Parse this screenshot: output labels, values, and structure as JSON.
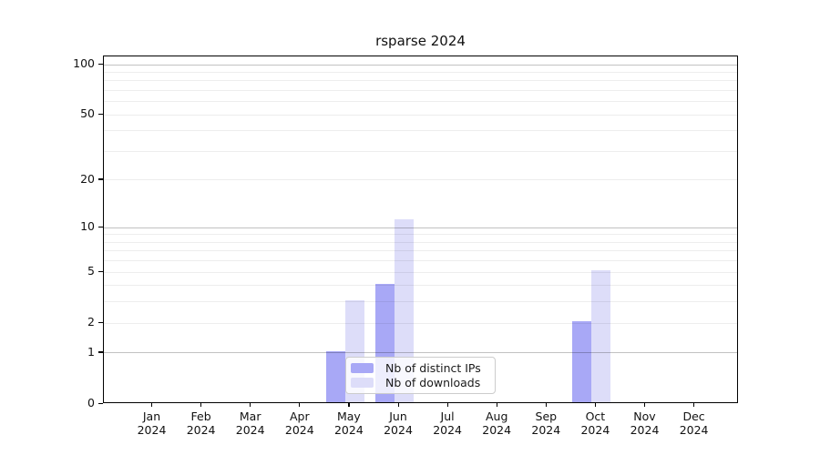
{
  "title": "rsparse 2024",
  "colors": {
    "distinct_ips_bar": "#a8a8f6",
    "downloads_bar": "#ddddf9",
    "grid_minor": "rgba(0,0,0,0.07)",
    "grid_major": "rgba(0,0,0,0.24)",
    "axis": "#000000",
    "legend_border": "#cccccc"
  },
  "chart_data": {
    "type": "bar",
    "title": "rsparse 2024",
    "categories": [
      "Jan 2024",
      "Feb 2024",
      "Mar 2024",
      "Apr 2024",
      "May 2024",
      "Jun 2024",
      "Jul 2024",
      "Aug 2024",
      "Sep 2024",
      "Oct 2024",
      "Nov 2024",
      "Dec 2024"
    ],
    "x_tick_months": [
      "Jan",
      "Feb",
      "Mar",
      "Apr",
      "May",
      "Jun",
      "Jul",
      "Aug",
      "Sep",
      "Oct",
      "Nov",
      "Dec"
    ],
    "x_tick_year": "2024",
    "series": [
      {
        "name": "Nb of distinct IPs",
        "values": [
          0,
          0,
          0,
          0,
          1,
          4,
          0,
          0,
          0,
          2,
          0,
          0
        ]
      },
      {
        "name": "Nb of downloads",
        "values": [
          0,
          0,
          0,
          0,
          3,
          11,
          0,
          0,
          0,
          5,
          0,
          0
        ]
      }
    ],
    "xlabel": "",
    "ylabel": "",
    "y_scale": "log1p",
    "y_axis_ticks": [
      0,
      1,
      2,
      5,
      10,
      20,
      50,
      100
    ],
    "y_minor_gridlines": [
      2,
      3,
      4,
      5,
      6,
      7,
      8,
      9,
      20,
      30,
      40,
      50,
      60,
      70,
      80,
      90
    ],
    "y_major_gridlines": [
      1,
      10,
      100
    ],
    "ylim": [
      0,
      113
    ],
    "grid": true,
    "legend_position": "lower center"
  },
  "legend": {
    "items": [
      {
        "label": "Nb of distinct IPs"
      },
      {
        "label": "Nb of downloads"
      }
    ]
  }
}
